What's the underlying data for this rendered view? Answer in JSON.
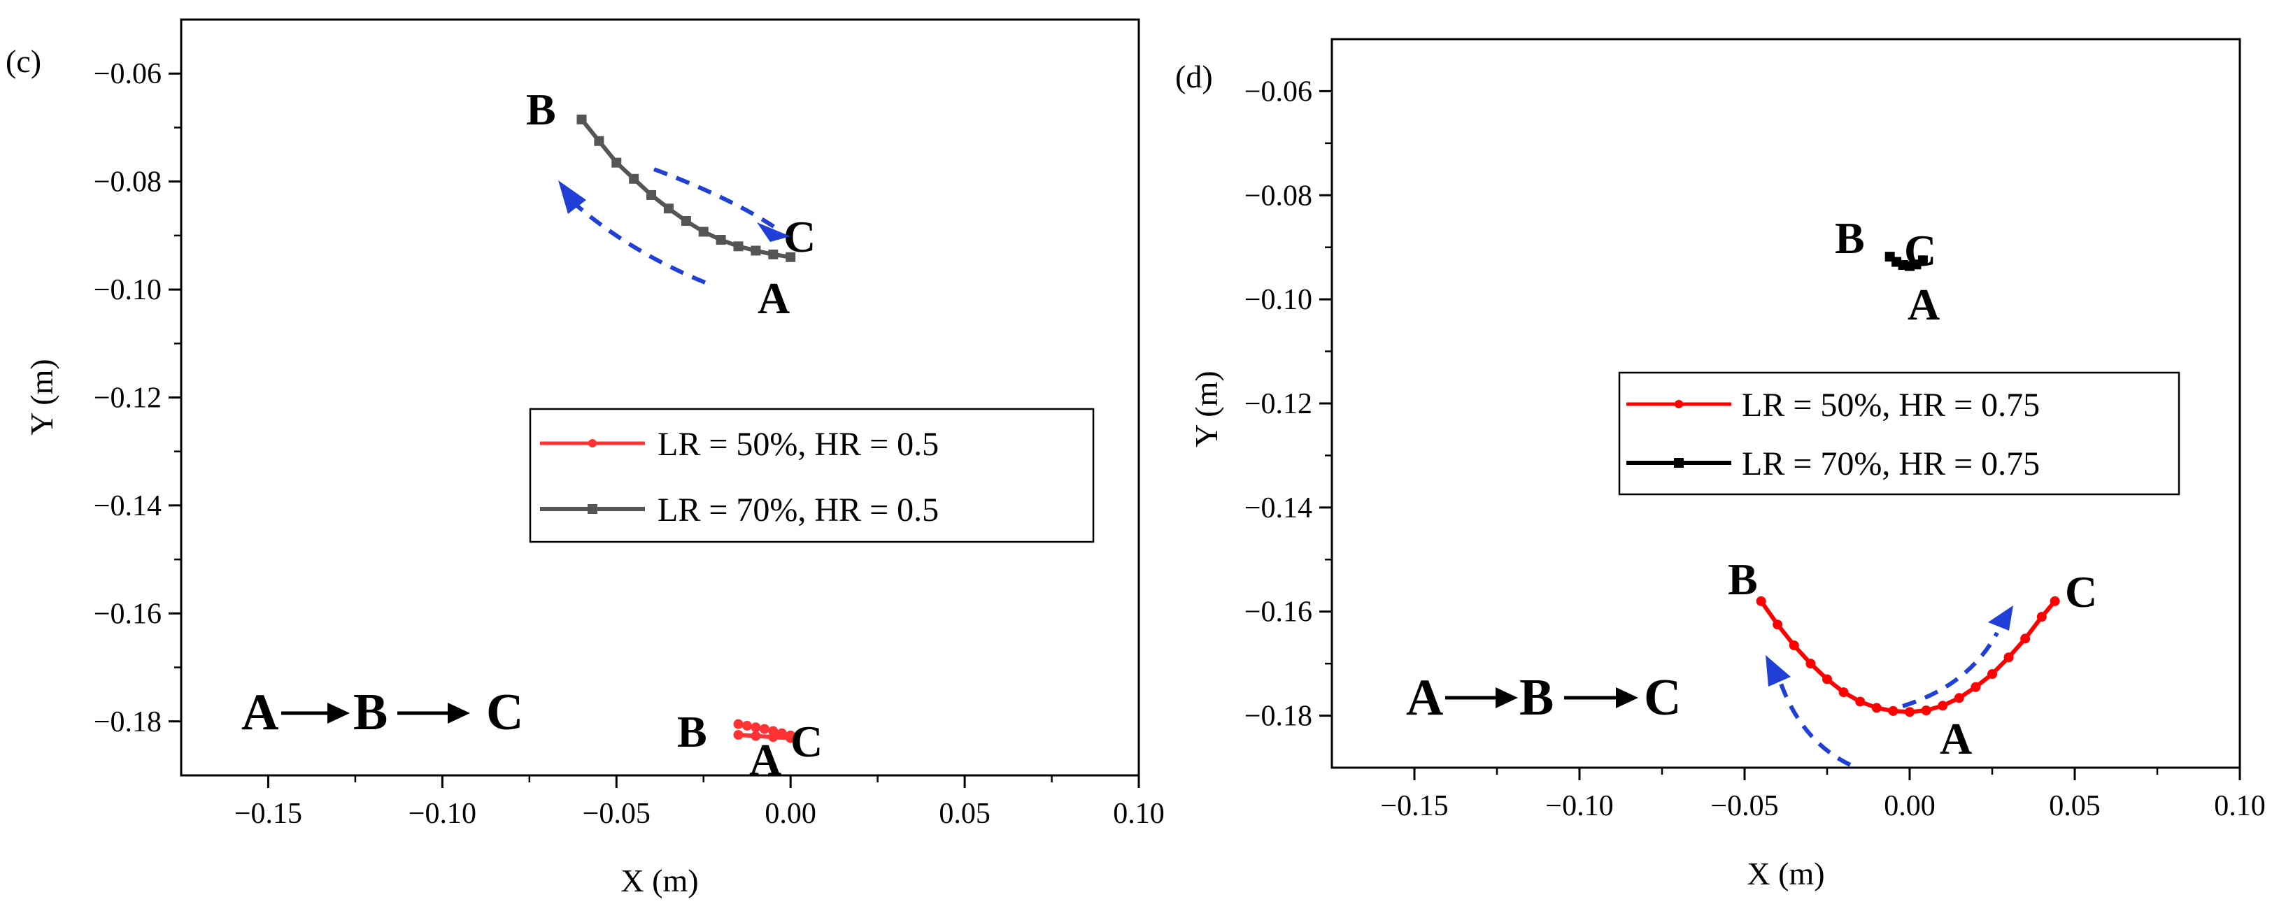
{
  "chart_data": [
    {
      "panel_label": "(c)",
      "type": "line",
      "xlabel": "X (m)",
      "ylabel": "Y (m)",
      "xlim": [
        -0.175,
        0.1
      ],
      "ylim": [
        -0.19,
        -0.05
      ],
      "xticks": [
        "-0.15",
        "-0.10",
        "-0.05",
        "0.00",
        "0.05",
        "0.10"
      ],
      "yticks": [
        "-0.06",
        "-0.08",
        "-0.10",
        "-0.12",
        "-0.14",
        "-0.16",
        "-0.18"
      ],
      "sequence_label": {
        "a": "A",
        "b": "B",
        "c": "C"
      },
      "point_labels": {
        "a": "A",
        "b": "B",
        "c": "C"
      },
      "legend": {
        "position": "center-right"
      },
      "series": [
        {
          "name": "LR = 50%, HR = 0.5",
          "color": "#ff3333",
          "marker": "circle",
          "x": [
            -0.015,
            -0.0125,
            -0.01,
            -0.0075,
            -0.005,
            -0.0025,
            0.0,
            0.0,
            -0.005,
            -0.01,
            -0.015
          ],
          "y": [
            -0.1805,
            -0.1808,
            -0.1811,
            -0.1814,
            -0.1818,
            -0.1822,
            -0.1826,
            -0.1831,
            -0.1829,
            -0.1827,
            -0.1825
          ]
        },
        {
          "name": "LR = 70%, HR = 0.5",
          "color": "#555555",
          "marker": "square",
          "x": [
            -0.06,
            -0.055,
            -0.05,
            -0.045,
            -0.04,
            -0.035,
            -0.03,
            -0.025,
            -0.02,
            -0.015,
            -0.01,
            -0.005,
            0.0
          ],
          "y": [
            -0.0685,
            -0.0725,
            -0.0765,
            -0.0795,
            -0.0825,
            -0.085,
            -0.0873,
            -0.0893,
            -0.0908,
            -0.092,
            -0.0928,
            -0.0935,
            -0.094
          ]
        }
      ]
    },
    {
      "panel_label": "(d)",
      "type": "line",
      "xlabel": "X (m)",
      "ylabel": "Y (m)",
      "xlim": [
        -0.175,
        0.1
      ],
      "ylim": [
        -0.19,
        -0.05
      ],
      "xticks": [
        "-0.15",
        "-0.10",
        "-0.05",
        "0.00",
        "0.05",
        "0.10"
      ],
      "yticks": [
        "-0.06",
        "-0.08",
        "-0.10",
        "-0.12",
        "-0.14",
        "-0.16",
        "-0.18"
      ],
      "sequence_label": {
        "a": "A",
        "b": "B",
        "c": "C"
      },
      "point_labels": {
        "a": "A",
        "b": "B",
        "c": "C"
      },
      "legend": {
        "position": "center-right"
      },
      "series": [
        {
          "name": "LR = 50%, HR = 0.75",
          "color": "#ff0000",
          "marker": "circle",
          "x": [
            -0.045,
            -0.04,
            -0.035,
            -0.03,
            -0.025,
            -0.02,
            -0.015,
            -0.01,
            -0.005,
            0.0,
            0.005,
            0.01,
            0.015,
            0.02,
            0.025,
            0.03,
            0.035,
            0.04,
            0.044
          ],
          "y": [
            -0.158,
            -0.1625,
            -0.1665,
            -0.17,
            -0.173,
            -0.1755,
            -0.1773,
            -0.1785,
            -0.1791,
            -0.1793,
            -0.179,
            -0.1781,
            -0.1766,
            -0.1745,
            -0.172,
            -0.1688,
            -0.1652,
            -0.161,
            -0.158
          ]
        },
        {
          "name": "LR = 70%, HR = 0.75",
          "color": "#000000",
          "marker": "square",
          "x": [
            -0.006,
            -0.004,
            -0.002,
            0.0,
            0.002,
            0.004
          ],
          "y": [
            -0.0918,
            -0.0928,
            -0.0934,
            -0.0936,
            -0.0933,
            -0.0925
          ]
        }
      ]
    }
  ]
}
